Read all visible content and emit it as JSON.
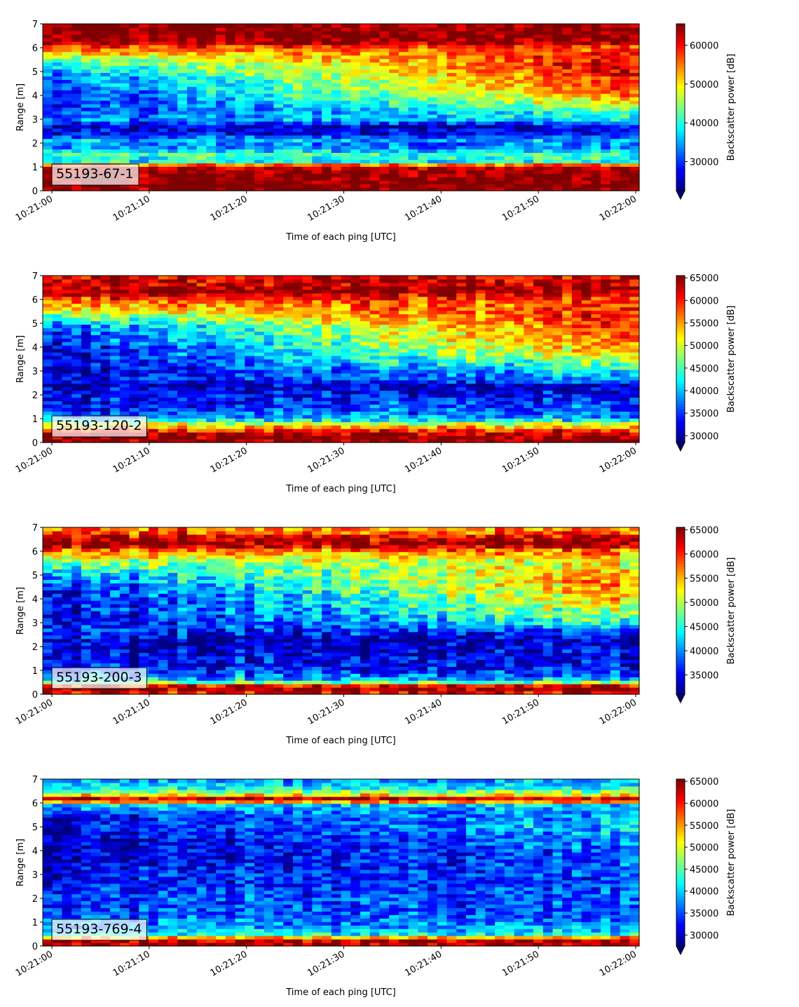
{
  "colormap": "jet",
  "colormap_stops": [
    "#00007f",
    "#0000ff",
    "#007fff",
    "#00ffff",
    "#7fff7f",
    "#ffff00",
    "#ff7f00",
    "#ff0000",
    "#7f0000"
  ],
  "label_box_color": "#ffffff",
  "chart_data": [
    {
      "type": "heatmap",
      "label": "55193-67-1",
      "xlabel": "Time of each ping [UTC]",
      "ylabel": "Range [m]",
      "colorbar_label": "Backscatter power [dB]",
      "x_start": "10:21:00",
      "x_end": "10:22:00",
      "xticks": [
        "10:21:00",
        "10:21:10",
        "10:21:20",
        "10:21:30",
        "10:21:40",
        "10:21:50",
        "10:22:00"
      ],
      "ylim": [
        0,
        7
      ],
      "yticks": [
        0,
        1,
        2,
        3,
        4,
        5,
        6,
        7
      ],
      "clim": [
        22500,
        65500
      ],
      "cticks": [
        30000,
        40000,
        50000,
        60000
      ],
      "colorbar_extend": "min",
      "profile": {
        "range": [
          0,
          0.25,
          0.5,
          0.9,
          1.05,
          1.25,
          1.5,
          1.65,
          1.9,
          2.1,
          2.4,
          2.7,
          3.0,
          3.4,
          3.8,
          4.3,
          4.8,
          5.2,
          5.6,
          6.0,
          6.2,
          6.5,
          7.0
        ],
        "start": [
          65500,
          65500,
          65500,
          65500,
          60000,
          38000,
          42000,
          38000,
          32000,
          36000,
          28000,
          26000,
          33000,
          29000,
          28000,
          30000,
          32000,
          38000,
          45000,
          56000,
          64000,
          65500,
          65500
        ],
        "end": [
          65500,
          65500,
          65500,
          65500,
          60000,
          38000,
          42000,
          38000,
          32000,
          36000,
          28000,
          26000,
          38000,
          43000,
          52000,
          58000,
          60000,
          62000,
          60000,
          56000,
          64000,
          65500,
          65500
        ]
      }
    },
    {
      "type": "heatmap",
      "label": "55193-120-2",
      "xlabel": "Time of each ping [UTC]",
      "ylabel": "Range [m]",
      "colorbar_label": "Backscatter power [dB]",
      "x_start": "10:21:00",
      "x_end": "10:22:00",
      "xticks": [
        "10:21:00",
        "10:21:10",
        "10:21:20",
        "10:21:30",
        "10:21:40",
        "10:21:50",
        "10:22:00"
      ],
      "ylim": [
        0,
        7
      ],
      "yticks": [
        0,
        1,
        2,
        3,
        4,
        5,
        6,
        7
      ],
      "clim": [
        28500,
        65500
      ],
      "cticks": [
        30000,
        35000,
        40000,
        45000,
        50000,
        55000,
        60000,
        65000
      ],
      "colorbar_extend": "min",
      "profile": {
        "range": [
          0,
          0.3,
          0.5,
          0.75,
          1.0,
          1.3,
          1.6,
          2.0,
          2.4,
          2.7,
          3.0,
          3.4,
          3.8,
          4.3,
          4.8,
          5.2,
          5.6,
          6.0,
          6.3,
          6.6,
          7.0
        ],
        "start": [
          65500,
          65500,
          60000,
          52000,
          40000,
          36000,
          34000,
          33000,
          31000,
          34000,
          31000,
          33000,
          32000,
          34000,
          36000,
          44000,
          52000,
          58000,
          65000,
          63000,
          62000
        ],
        "end": [
          65500,
          65500,
          60000,
          52000,
          40000,
          37000,
          36000,
          33000,
          31000,
          38000,
          42000,
          48000,
          54000,
          58000,
          60000,
          61000,
          60000,
          58000,
          65000,
          63000,
          62000
        ]
      }
    },
    {
      "type": "heatmap",
      "label": "55193-200-3",
      "xlabel": "Time of each ping [UTC]",
      "ylabel": "Range [m]",
      "colorbar_label": "Backscatter power [dB]",
      "x_start": "10:21:00",
      "x_end": "10:22:00",
      "xticks": [
        "10:21:00",
        "10:21:10",
        "10:21:20",
        "10:21:30",
        "10:21:40",
        "10:21:50",
        "10:22:00"
      ],
      "ylim": [
        0,
        7
      ],
      "yticks": [
        0,
        1,
        2,
        3,
        4,
        5,
        6,
        7
      ],
      "clim": [
        31000,
        65500
      ],
      "cticks": [
        35000,
        40000,
        45000,
        50000,
        55000,
        60000,
        65000
      ],
      "colorbar_extend": "min",
      "profile": {
        "range": [
          0,
          0.2,
          0.35,
          0.55,
          0.8,
          1.1,
          1.5,
          1.9,
          2.3,
          2.7,
          3.0,
          3.5,
          4.0,
          4.5,
          5.0,
          5.5,
          6.0,
          6.3,
          6.6,
          7.0
        ],
        "start": [
          60000,
          65500,
          63000,
          44000,
          40000,
          36000,
          35000,
          33000,
          34000,
          37000,
          34000,
          35000,
          34000,
          36000,
          40000,
          48000,
          56000,
          65500,
          62000,
          55000
        ],
        "end": [
          60000,
          65500,
          63000,
          44000,
          38000,
          35000,
          34000,
          34000,
          33000,
          38000,
          45000,
          50000,
          54000,
          57000,
          56000,
          52000,
          56000,
          65500,
          62000,
          55000
        ]
      }
    },
    {
      "type": "heatmap",
      "label": "55193-769-4",
      "xlabel": "Time of each ping [UTC]",
      "ylabel": "Range [m]",
      "colorbar_label": "Backscatter power [dB]",
      "x_start": "10:21:00",
      "x_end": "10:22:00",
      "xticks": [
        "10:21:00",
        "10:21:10",
        "10:21:20",
        "10:21:30",
        "10:21:40",
        "10:21:50",
        "10:22:00"
      ],
      "ylim": [
        0,
        7
      ],
      "yticks": [
        0,
        1,
        2,
        3,
        4,
        5,
        6,
        7
      ],
      "clim": [
        27500,
        65500
      ],
      "cticks": [
        30000,
        35000,
        40000,
        45000,
        50000,
        55000,
        60000,
        65000
      ],
      "colorbar_extend": "min",
      "profile": {
        "range": [
          0,
          0.15,
          0.3,
          0.5,
          0.8,
          1.2,
          1.6,
          2.0,
          2.5,
          3.0,
          3.5,
          4.0,
          4.5,
          5.0,
          5.5,
          5.9,
          6.15,
          6.35,
          6.6,
          7.0
        ],
        "start": [
          62000,
          65500,
          60000,
          42000,
          38000,
          36000,
          34000,
          35000,
          33000,
          32000,
          31000,
          30000,
          30000,
          31000,
          33000,
          40000,
          65500,
          52000,
          42000,
          38000
        ],
        "end": [
          62000,
          65500,
          60000,
          42000,
          38000,
          36000,
          35000,
          36000,
          34000,
          35000,
          35000,
          36000,
          38000,
          40000,
          38000,
          40000,
          65500,
          52000,
          42000,
          38000
        ]
      }
    }
  ]
}
